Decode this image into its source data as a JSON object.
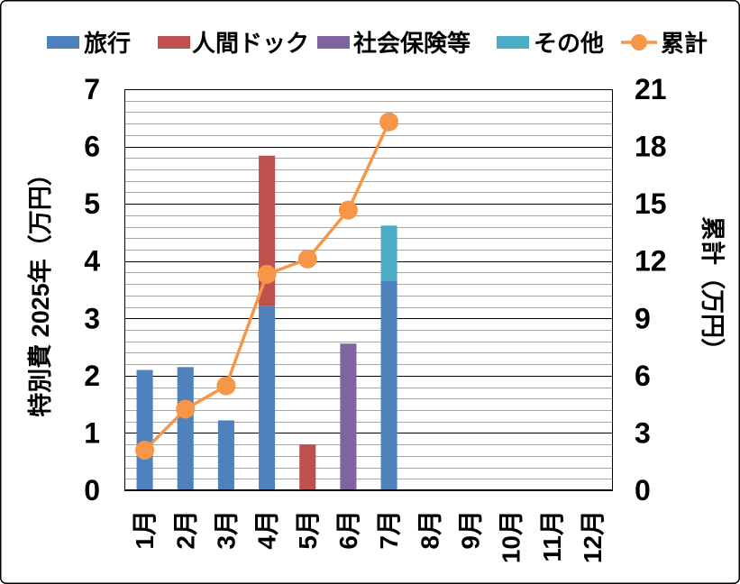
{
  "chart_data": {
    "type": "bar",
    "stacked": true,
    "categories": [
      "1月",
      "2月",
      "3月",
      "4月",
      "5月",
      "6月",
      "7月",
      "8月",
      "9月",
      "10月",
      "11月",
      "12月"
    ],
    "series": [
      {
        "name": "旅行",
        "type": "bar",
        "axis": "left",
        "color": "#4F81BD",
        "values": [
          2.1,
          2.15,
          1.22,
          3.22,
          0,
          0,
          3.65,
          null,
          null,
          null,
          null,
          null
        ]
      },
      {
        "name": "人間ドック",
        "type": "bar",
        "axis": "left",
        "color": "#C0504D",
        "values": [
          0,
          0,
          0,
          2.62,
          0.8,
          0,
          0,
          null,
          null,
          null,
          null,
          null
        ]
      },
      {
        "name": "社会保険等",
        "type": "bar",
        "axis": "left",
        "color": "#8064A2",
        "values": [
          0,
          0,
          0,
          0,
          0,
          2.56,
          0,
          null,
          null,
          null,
          null,
          null
        ]
      },
      {
        "name": "その他",
        "type": "bar",
        "axis": "left",
        "color": "#4BACC6",
        "values": [
          0,
          0,
          0,
          0,
          0,
          0,
          0.97,
          null,
          null,
          null,
          null,
          null
        ]
      },
      {
        "name": "累計",
        "type": "line",
        "axis": "right",
        "color": "#F79646",
        "marker": "circle",
        "values": [
          2.1,
          4.25,
          5.47,
          11.31,
          12.11,
          14.67,
          19.29,
          null,
          null,
          null,
          null,
          null
        ]
      }
    ],
    "ylabel": "特別費 2025年（万円）",
    "y2label": "累計（万円）",
    "ylim": [
      0,
      7
    ],
    "y2lim": [
      0,
      21
    ],
    "yticks": [
      0,
      1,
      2,
      3,
      4,
      5,
      6,
      7
    ],
    "y2ticks": [
      0,
      3,
      6,
      9,
      12,
      15,
      18,
      21
    ],
    "grid": {
      "major": true,
      "minor": true,
      "minor_step": 0.2
    },
    "legend": "top"
  }
}
